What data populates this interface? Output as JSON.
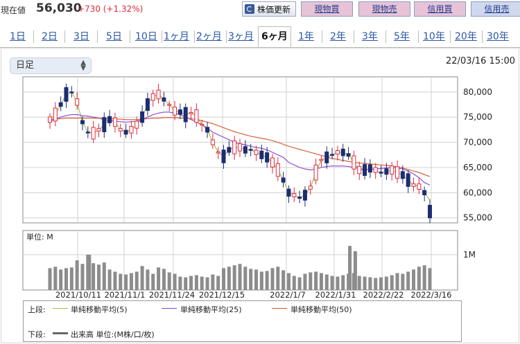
{
  "header": {
    "now_label": "現在値",
    "price": "56,030",
    "change": "+730 (+1.32%)",
    "refresh_label": "株価更新",
    "trade_buttons": [
      "現物買",
      "現物売",
      "信用買",
      "信用売"
    ]
  },
  "tabs": [
    "1日",
    "2日",
    "3日",
    "5日",
    "10日",
    "1ヶ月",
    "2ヶ月",
    "3ヶ月",
    "6ヶ月",
    "1年",
    "2年",
    "3年",
    "5年",
    "10年",
    "20年",
    "30年"
  ],
  "active_tab": "6ヶ月",
  "period_select": {
    "value": "日足"
  },
  "datetime": "22/03/16 15:00",
  "colors": {
    "up": "#e0283a",
    "down": "#1c2d73",
    "ma5": "#9bc23c",
    "ma25": "#8a3fd1",
    "ma50": "#d4532a",
    "volume": "#8c8c8c"
  },
  "legend": {
    "upper_label": "上段:",
    "lower_label": "下段:",
    "ma5": "単純移動平均(5)",
    "ma25": "単純移動平均(25)",
    "ma50": "単純移動平均(50)",
    "volume": "出来高 単位:(M株/口/枚)"
  },
  "chart_data": [
    {
      "type": "candlestick",
      "y_ticks": [
        "80,000",
        "75,000",
        "70,000",
        "65,000",
        "60,000",
        "55,000"
      ],
      "ylim": [
        54000,
        83000
      ],
      "x_ticks": [
        "2021/10/11",
        "2021/11/1",
        "2021/11/24",
        "2021/12/15",
        "2022/1/7",
        "2022/1/31",
        "2022/2/22",
        "2022/3/16"
      ],
      "series": [
        {
          "name": "単純移動平均(5)",
          "values": [
            74500,
            75500,
            77500,
            79500,
            80000,
            78000,
            74000,
            72000,
            71800,
            72500,
            73500,
            74500,
            74000,
            72500,
            72000,
            72500,
            73500,
            75000,
            77500,
            79000,
            79500,
            78500,
            77500,
            76200,
            76000,
            75500,
            75800,
            75200,
            73500,
            72500,
            70000,
            68000,
            67200,
            68500,
            69000,
            69000,
            68500,
            68500,
            68000,
            67500,
            67000,
            66000,
            64500,
            62500,
            60000,
            59500,
            59000,
            59500,
            61000,
            64000,
            66500,
            67000,
            67500,
            68000,
            68000,
            67500,
            66000,
            64500,
            64500,
            64800,
            64500,
            64000,
            64200,
            64500,
            64000,
            63500,
            62500,
            61500,
            61200,
            60000,
            58500
          ]
        },
        {
          "name": "単純移動平均(25)",
          "values": [
            74200,
            74500,
            75000,
            75300,
            75500,
            75500,
            75300,
            75200,
            75000,
            74800,
            74500,
            74300,
            74200,
            74100,
            74000,
            74100,
            74200,
            74500,
            75000,
            75500,
            75800,
            76000,
            76000,
            75800,
            75500,
            75000,
            74500,
            74000,
            73500,
            72800,
            72000,
            71500,
            71000,
            70500,
            70000,
            69700,
            69500,
            69200,
            69000,
            68800,
            68500,
            68000,
            67500,
            67000,
            66000,
            65500,
            65000,
            64700,
            64500,
            64700,
            65000,
            65200,
            65300,
            65300,
            65300,
            65200,
            65000,
            64800,
            64600,
            64600,
            64700,
            64800,
            64900,
            65000,
            64900,
            64700,
            64300,
            63700,
            63000,
            62000,
            61500
          ]
        },
        {
          "name": "単純移動平均(50)",
          "values": [
            74500,
            74600,
            74700,
            74800,
            74800,
            74800,
            74800,
            74800,
            74800,
            74800,
            74700,
            74700,
            74600,
            74600,
            74500,
            74500,
            74500,
            74600,
            74700,
            74800,
            74800,
            74900,
            74900,
            74900,
            74800,
            74800,
            74700,
            74500,
            74300,
            74000,
            73700,
            73300,
            72900,
            72500,
            72100,
            71800,
            71500,
            71200,
            71000,
            70800,
            70600,
            70300,
            70000,
            69600,
            69200,
            68900,
            68600,
            68300,
            68000,
            67700,
            67400,
            67100,
            66800,
            66600,
            66400,
            66200,
            66000,
            65900,
            65800,
            65700,
            65600,
            65500,
            65400,
            65300,
            65100,
            64900,
            64600,
            64300,
            64000,
            63600,
            63200
          ]
        }
      ]
    },
    {
      "type": "bar",
      "title": "単位: M",
      "y_ticks": [
        "1M"
      ],
      "values": [
        0.62,
        0.66,
        0.58,
        0.62,
        0.64,
        0.84,
        0.74,
        1.0,
        0.76,
        0.72,
        0.78,
        0.58,
        0.52,
        0.46,
        0.44,
        0.48,
        0.52,
        0.68,
        0.58,
        0.46,
        0.64,
        0.6,
        0.5,
        0.46,
        0.38,
        0.36,
        0.4,
        0.42,
        0.38,
        0.36,
        0.44,
        0.4,
        0.62,
        0.66,
        0.7,
        0.74,
        0.66,
        0.6,
        0.58,
        0.52,
        0.54,
        0.62,
        0.66,
        0.56,
        0.48,
        0.4,
        0.36,
        0.46,
        0.5,
        0.52,
        0.48,
        0.44,
        0.4,
        0.38,
        0.42,
        0.46,
        0.48,
        0.4,
        0.38,
        0.36,
        0.34,
        0.36,
        0.38,
        0.42,
        0.48,
        0.46,
        0.52,
        0.58,
        0.66,
        0.7,
        0.62
      ],
      "extra_spikes": [
        [
          7,
          1.0
        ],
        [
          55,
          1.25
        ],
        [
          56,
          1.1
        ]
      ]
    }
  ]
}
